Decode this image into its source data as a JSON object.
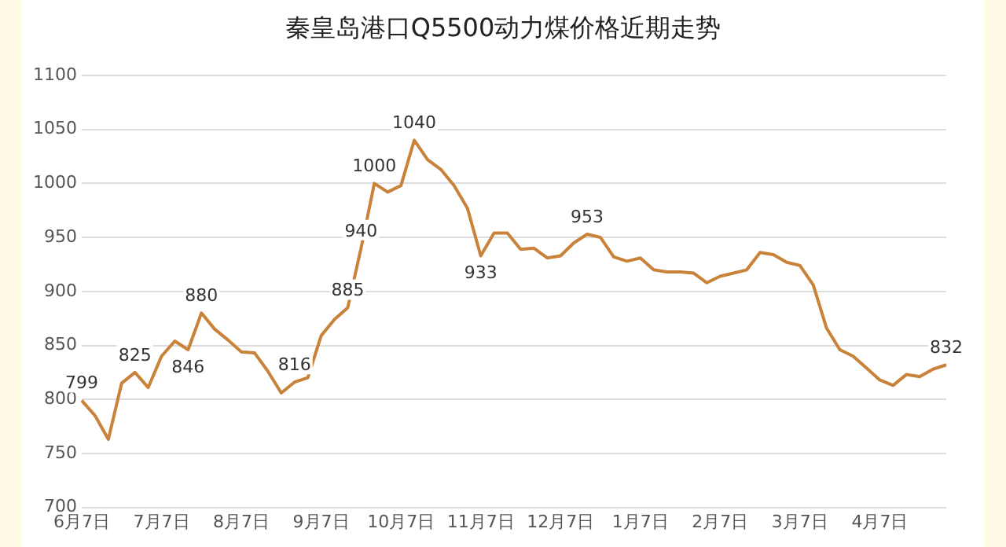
{
  "chart_data": {
    "type": "line",
    "title": "秦皇岛港口Q5500动力煤价格近期走势",
    "categories": [
      "6月7日",
      null,
      null,
      null,
      null,
      null,
      "7月7日",
      null,
      null,
      null,
      null,
      null,
      "8月7日",
      null,
      null,
      null,
      null,
      null,
      "9月7日",
      null,
      null,
      null,
      null,
      null,
      "10月7日",
      null,
      null,
      null,
      null,
      null,
      "11月7日",
      null,
      null,
      null,
      null,
      null,
      "12月7日",
      null,
      null,
      null,
      null,
      null,
      "1月7日",
      null,
      null,
      null,
      null,
      null,
      "2月7日",
      null,
      null,
      null,
      null,
      null,
      "3月7日",
      null,
      null,
      null,
      null,
      null,
      "4月7日",
      null,
      null,
      null,
      null,
      null
    ],
    "series": [
      {
        "color": "#c8823a",
        "values": [
          799,
          785,
          763,
          815,
          825,
          811,
          840,
          854,
          846,
          880,
          865,
          855,
          844,
          843,
          826,
          806,
          816,
          820,
          859,
          874,
          885,
          940,
          1000,
          992,
          998,
          1040,
          1022,
          1013,
          998,
          977,
          933,
          954,
          954,
          939,
          940,
          931,
          933,
          945,
          953,
          950,
          932,
          928,
          931,
          920,
          918,
          918,
          917,
          908,
          914,
          917,
          920,
          936,
          934,
          927,
          924,
          906,
          866,
          846,
          840,
          829,
          818,
          813,
          823,
          821,
          828,
          832
        ],
        "value_labels": [
          "799",
          null,
          null,
          null,
          "825",
          null,
          null,
          null,
          "846",
          "880",
          null,
          null,
          null,
          null,
          null,
          null,
          "816",
          null,
          null,
          null,
          "885",
          "940",
          "1000",
          null,
          null,
          "1040",
          null,
          null,
          null,
          null,
          "933",
          null,
          null,
          null,
          null,
          null,
          null,
          null,
          "953",
          null,
          null,
          null,
          null,
          null,
          null,
          null,
          null,
          null,
          null,
          null,
          null,
          null,
          null,
          null,
          null,
          null,
          null,
          null,
          null,
          null,
          null,
          null,
          null,
          null,
          null,
          "832"
        ]
      }
    ],
    "ylim": [
      700,
      1100
    ],
    "yticks": [
      700,
      750,
      800,
      850,
      900,
      950,
      1000,
      1050,
      1100
    ],
    "grid": "y",
    "legend": false,
    "marker": "none",
    "line_style": "solid"
  }
}
